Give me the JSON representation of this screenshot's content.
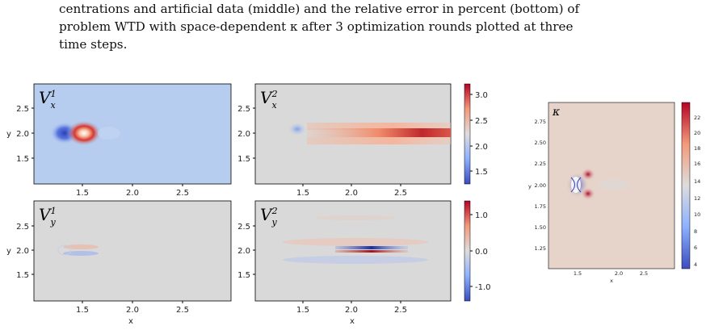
{
  "caption": {
    "line1": "centrations and artificial data (middle) and the relative error in percent (bottom) of",
    "line2": "problem WTD with space-dependent κ after 3 optimization rounds plotted at three",
    "line3": "time steps."
  },
  "panels": {
    "vx1": {
      "title_base": "V",
      "title_sub": "x",
      "title_sup": "1"
    },
    "vx2": {
      "title_base": "V",
      "title_sub": "x",
      "title_sup": "2"
    },
    "vy1": {
      "title_base": "V",
      "title_sub": "y",
      "title_sup": "1"
    },
    "vy2": {
      "title_base": "V",
      "title_sub": "y",
      "title_sup": "2"
    },
    "kappa": {
      "title": "κ"
    }
  },
  "axes": {
    "ylabel": "y",
    "xlabel": "x",
    "top_yticks": [
      "2.5",
      "2.0",
      "1.5"
    ],
    "bottom_yticks": [
      "2.5",
      "2.0",
      "1.5"
    ],
    "xticks": [
      "1.5",
      "2.0",
      "2.5"
    ]
  },
  "colorbars": {
    "top": [
      "3.0",
      "2.5",
      "2.0",
      "1.5"
    ],
    "bottom": [
      "1.0",
      "0.0",
      "-1.0"
    ],
    "kappa": [
      "22",
      "20",
      "18",
      "16",
      "14",
      "12",
      "10",
      "8",
      "6",
      "4"
    ]
  },
  "kappa_axes": {
    "yticks": [
      "2.75",
      "2.50",
      "2.25",
      "2.00",
      "1.75",
      "1.50",
      "1.25"
    ],
    "xticks": [
      "1.5",
      "2.0",
      "2.5"
    ],
    "xlabel": "x",
    "ylabel": "y"
  },
  "colors": {
    "cmap_low": "#3b4cc0",
    "cmap_mid": "#dddddd",
    "cmap_high": "#b40426",
    "vx1_bg": "#b6cdf0",
    "field_bg": "#d9d9d9",
    "kappa_bg": "#e6d3c9"
  }
}
